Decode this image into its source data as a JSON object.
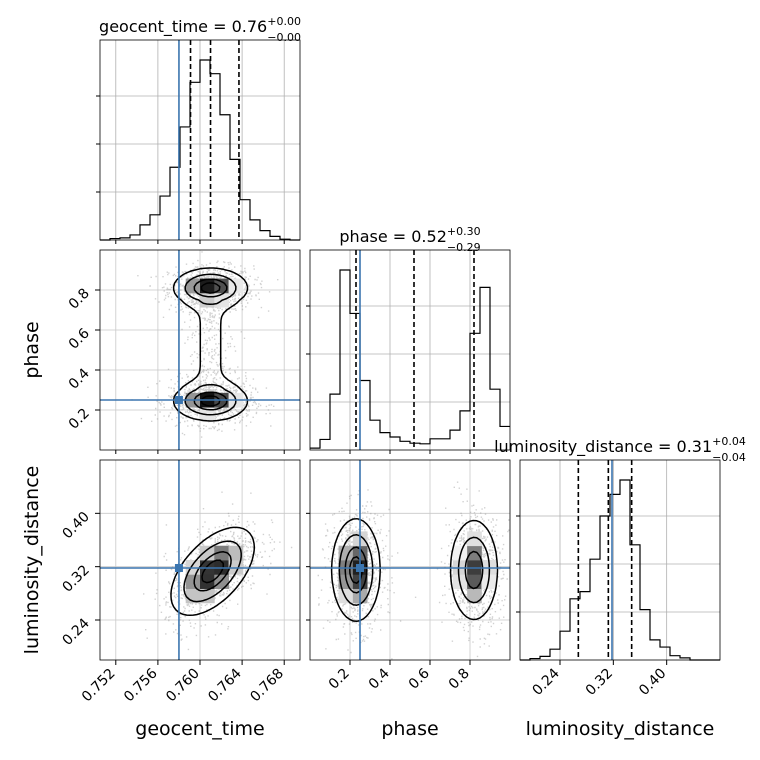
{
  "chart_data": {
    "type": "corner",
    "parameters": [
      "geocent_time",
      "phase",
      "luminosity_distance"
    ],
    "truth_color": "#3b75af",
    "grid": true,
    "ranges": {
      "geocent_time": [
        0.7505,
        0.7695
      ],
      "phase": [
        0.0,
        1.0
      ],
      "luminosity_distance": [
        0.18,
        0.48
      ]
    },
    "ticks": {
      "geocent_time": [
        0.752,
        0.756,
        0.76,
        0.764,
        0.768
      ],
      "phase": [
        0.2,
        0.4,
        0.6,
        0.8
      ],
      "luminosity_distance": [
        0.24,
        0.32,
        0.4
      ]
    },
    "tick_labels": {
      "geocent_time": [
        "0.752",
        "0.756",
        "0.760",
        "0.764",
        "0.768"
      ],
      "phase": [
        "0.2",
        "0.4",
        "0.6",
        "0.8"
      ],
      "luminosity_distance": [
        "0.24",
        "0.32",
        "0.40"
      ]
    },
    "truths": {
      "geocent_time": 0.758,
      "phase": 0.25,
      "luminosity_distance": 0.318
    },
    "titles": [
      {
        "param": "geocent_time",
        "text": "geocent_time = 0.76",
        "sup": "+0.00",
        "sub": "−0.00"
      },
      {
        "param": "phase",
        "text": "phase = 0.52",
        "sup": "+0.30",
        "sub": "−0.29"
      },
      {
        "param": "luminosity_distance",
        "text": "luminosity_distance = 0.31",
        "sup": "+0.04",
        "sub": "−0.04"
      }
    ],
    "quantiles": {
      "geocent_time": [
        0.7591,
        0.761,
        0.7637
      ],
      "phase": [
        0.23,
        0.52,
        0.82
      ],
      "luminosity_distance": [
        0.2675,
        0.3125,
        0.3475
      ]
    },
    "histograms": {
      "geocent_time": {
        "edges_start": 0.7505,
        "bin_width": 0.00095,
        "counts": [
          0,
          2,
          3,
          7,
          21,
          35,
          61,
          101,
          157,
          219,
          250,
          231,
          174,
          112,
          56,
          28,
          13,
          5,
          1,
          0
        ]
      },
      "phase": {
        "edges_start": 0.0,
        "bin_width": 0.05,
        "counts": [
          3,
          17,
          90,
          290,
          220,
          112,
          48,
          28,
          21,
          14,
          11,
          10,
          18,
          18,
          32,
          63,
          188,
          262,
          98,
          38
        ]
      },
      "luminosity_distance": {
        "edges_start": 0.18,
        "bin_width": 0.015,
        "counts": [
          0,
          2,
          5,
          15,
          40,
          85,
          95,
          140,
          200,
          230,
          250,
          160,
          70,
          28,
          18,
          6,
          3,
          0,
          0,
          0
        ]
      }
    },
    "panels_2d": [
      {
        "x": "geocent_time",
        "y": "phase",
        "modes": [
          {
            "cx": 0.761,
            "cy": 0.81,
            "sx": 0.0016,
            "sy": 0.045,
            "rho": 0.0,
            "w": 1.0
          },
          {
            "cx": 0.761,
            "cy": 0.245,
            "sx": 0.0016,
            "sy": 0.045,
            "rho": 0.0,
            "w": 1.0
          }
        ]
      },
      {
        "x": "geocent_time",
        "y": "luminosity_distance",
        "modes": [
          {
            "cx": 0.7612,
            "cy": 0.313,
            "sx": 0.0018,
            "sy": 0.03,
            "rho": 0.55,
            "w": 1.0
          }
        ]
      },
      {
        "x": "phase",
        "y": "luminosity_distance",
        "modes": [
          {
            "cx": 0.23,
            "cy": 0.315,
            "sx": 0.055,
            "sy": 0.035,
            "rho": 0.0,
            "w": 1.0
          },
          {
            "cx": 0.82,
            "cy": 0.315,
            "sx": 0.055,
            "sy": 0.035,
            "rho": 0.0,
            "w": 0.85
          }
        ]
      }
    ]
  }
}
